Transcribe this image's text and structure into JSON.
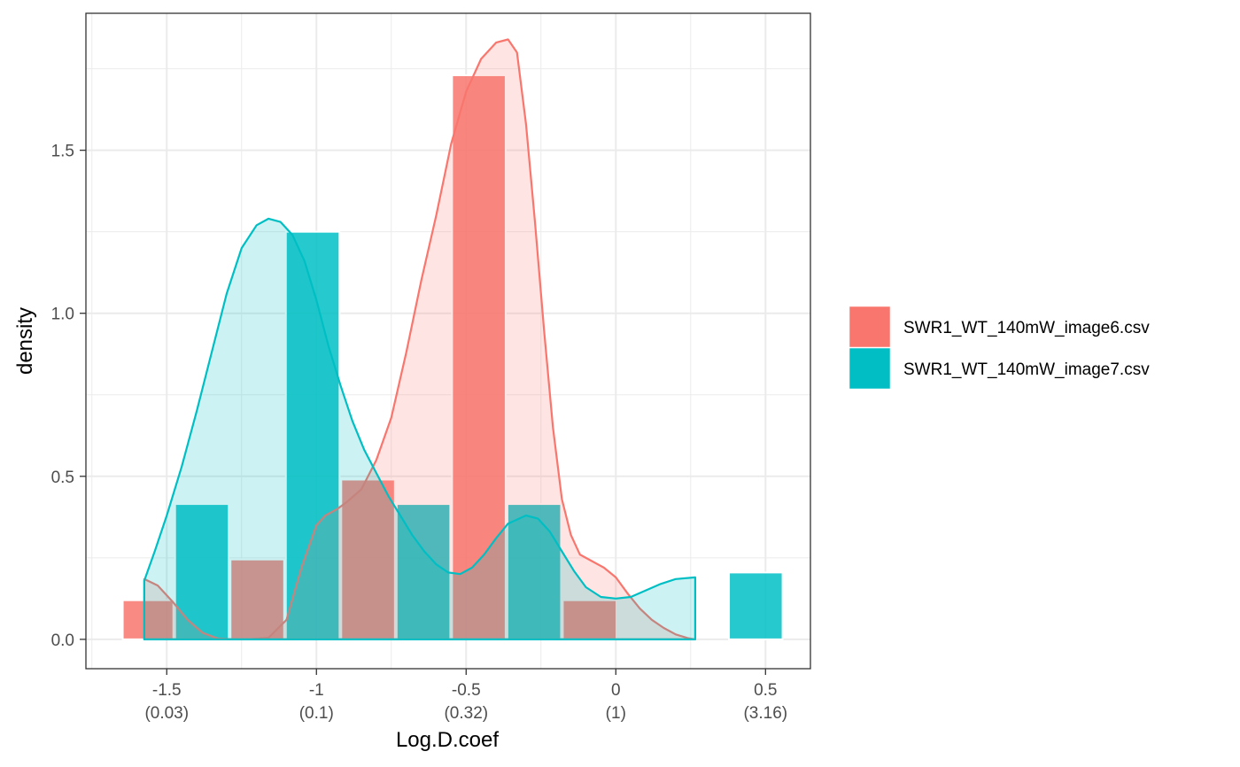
{
  "chart_data": {
    "type": "bar",
    "title": "",
    "xlabel": "Log.D.coef",
    "ylabel": "density",
    "xlim": [
      -1.77,
      0.65
    ],
    "ylim": [
      -0.09,
      1.92
    ],
    "x_ticks": [
      {
        "value": -1.5,
        "label": "-1.5",
        "sublabel": "(0.03)"
      },
      {
        "value": -1.0,
        "label": "-1",
        "sublabel": "(0.1)"
      },
      {
        "value": -0.5,
        "label": "-0.5",
        "sublabel": "(0.32)"
      },
      {
        "value": 0.0,
        "label": "0",
        "sublabel": "(1)"
      },
      {
        "value": 0.5,
        "label": "0.5",
        "sublabel": "(3.16)"
      }
    ],
    "y_ticks": [
      {
        "value": 0.0,
        "label": "0.0"
      },
      {
        "value": 0.5,
        "label": "0.5"
      },
      {
        "value": 1.0,
        "label": "1.0"
      },
      {
        "value": 1.5,
        "label": "1.5"
      }
    ],
    "grid": true,
    "legend_position": "right",
    "series": [
      {
        "name": "SWR1_WT_140mW_image6.csv",
        "color": "#F8766D",
        "histogram": [
          {
            "x0": -1.65,
            "x1": -1.475,
            "density": 0.12
          },
          {
            "x0": -1.475,
            "x1": -1.29,
            "density": 0.0
          },
          {
            "x0": -1.29,
            "x1": -1.105,
            "density": 0.245
          },
          {
            "x0": -1.105,
            "x1": -0.92,
            "density": 0.0
          },
          {
            "x0": -0.92,
            "x1": -0.735,
            "density": 0.49
          },
          {
            "x0": -0.735,
            "x1": -0.55,
            "density": 0.0
          },
          {
            "x0": -0.55,
            "x1": -0.365,
            "density": 1.73
          },
          {
            "x0": -0.365,
            "x1": -0.18,
            "density": 0.0
          },
          {
            "x0": -0.18,
            "x1": 0.005,
            "density": 0.12
          }
        ],
        "density_curve": [
          [
            -1.575,
            0.185
          ],
          [
            -1.53,
            0.165
          ],
          [
            -1.48,
            0.115
          ],
          [
            -1.43,
            0.06
          ],
          [
            -1.38,
            0.02
          ],
          [
            -1.33,
            0.003
          ],
          [
            -1.28,
            0.0
          ],
          [
            -1.22,
            0.0
          ],
          [
            -1.16,
            0.005
          ],
          [
            -1.1,
            0.06
          ],
          [
            -1.05,
            0.22
          ],
          [
            -1.0,
            0.35
          ],
          [
            -0.97,
            0.38
          ],
          [
            -0.93,
            0.4
          ],
          [
            -0.9,
            0.42
          ],
          [
            -0.85,
            0.46
          ],
          [
            -0.8,
            0.55
          ],
          [
            -0.75,
            0.68
          ],
          [
            -0.7,
            0.88
          ],
          [
            -0.65,
            1.1
          ],
          [
            -0.6,
            1.3
          ],
          [
            -0.55,
            1.52
          ],
          [
            -0.5,
            1.68
          ],
          [
            -0.45,
            1.78
          ],
          [
            -0.4,
            1.83
          ],
          [
            -0.36,
            1.84
          ],
          [
            -0.33,
            1.8
          ],
          [
            -0.3,
            1.58
          ],
          [
            -0.27,
            1.28
          ],
          [
            -0.24,
            0.95
          ],
          [
            -0.21,
            0.65
          ],
          [
            -0.18,
            0.43
          ],
          [
            -0.15,
            0.32
          ],
          [
            -0.12,
            0.26
          ],
          [
            -0.08,
            0.24
          ],
          [
            -0.04,
            0.22
          ],
          [
            0.0,
            0.19
          ],
          [
            0.04,
            0.14
          ],
          [
            0.08,
            0.095
          ],
          [
            0.12,
            0.06
          ],
          [
            0.16,
            0.035
          ],
          [
            0.2,
            0.015
          ],
          [
            0.24,
            0.004
          ],
          [
            0.265,
            0.0
          ]
        ]
      },
      {
        "name": "SWR1_WT_140mW_image7.csv",
        "color": "#00BFC4",
        "histogram": [
          {
            "x0": -1.475,
            "x1": -1.29,
            "density": 0.415
          },
          {
            "x0": -1.105,
            "x1": -0.92,
            "density": 1.25
          },
          {
            "x0": -0.735,
            "x1": -0.55,
            "density": 0.415
          },
          {
            "x0": -0.365,
            "x1": -0.18,
            "density": 0.415
          },
          {
            "x0": 0.375,
            "x1": 0.56,
            "density": 0.205
          }
        ],
        "density_curve": [
          [
            -1.575,
            0.18
          ],
          [
            -1.54,
            0.27
          ],
          [
            -1.5,
            0.38
          ],
          [
            -1.45,
            0.53
          ],
          [
            -1.4,
            0.7
          ],
          [
            -1.35,
            0.88
          ],
          [
            -1.3,
            1.06
          ],
          [
            -1.25,
            1.2
          ],
          [
            -1.2,
            1.27
          ],
          [
            -1.16,
            1.29
          ],
          [
            -1.12,
            1.28
          ],
          [
            -1.08,
            1.24
          ],
          [
            -1.04,
            1.16
          ],
          [
            -1.0,
            1.04
          ],
          [
            -0.96,
            0.9
          ],
          [
            -0.92,
            0.78
          ],
          [
            -0.88,
            0.67
          ],
          [
            -0.84,
            0.58
          ],
          [
            -0.8,
            0.51
          ],
          [
            -0.76,
            0.44
          ],
          [
            -0.72,
            0.38
          ],
          [
            -0.68,
            0.32
          ],
          [
            -0.64,
            0.27
          ],
          [
            -0.6,
            0.23
          ],
          [
            -0.56,
            0.205
          ],
          [
            -0.52,
            0.2
          ],
          [
            -0.48,
            0.22
          ],
          [
            -0.44,
            0.26
          ],
          [
            -0.4,
            0.31
          ],
          [
            -0.36,
            0.355
          ],
          [
            -0.3,
            0.38
          ],
          [
            -0.26,
            0.37
          ],
          [
            -0.22,
            0.33
          ],
          [
            -0.18,
            0.27
          ],
          [
            -0.14,
            0.21
          ],
          [
            -0.1,
            0.16
          ],
          [
            -0.05,
            0.13
          ],
          [
            0.0,
            0.125
          ],
          [
            0.05,
            0.13
          ],
          [
            0.1,
            0.15
          ],
          [
            0.15,
            0.17
          ],
          [
            0.2,
            0.185
          ],
          [
            0.265,
            0.19
          ]
        ]
      }
    ]
  }
}
